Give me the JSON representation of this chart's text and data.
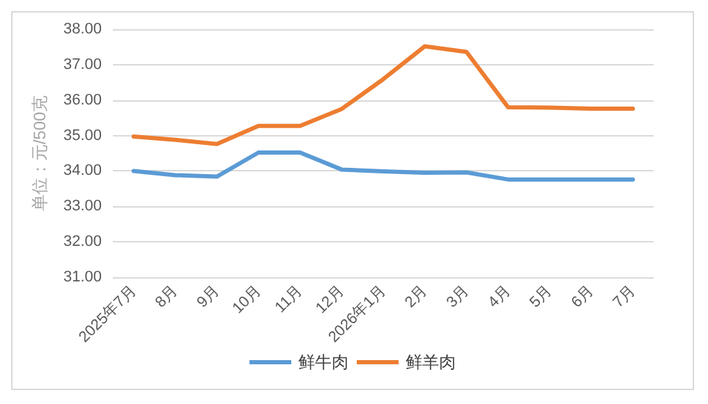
{
  "chart_data": {
    "type": "line",
    "ylabel": "单位：元/500克",
    "categories": [
      "2025年7月",
      "8月",
      "9月",
      "10月",
      "11月",
      "12月",
      "2026年1月",
      "2月",
      "3月",
      "4月",
      "5月",
      "6月",
      "7月"
    ],
    "series": [
      {
        "name": "鲜牛肉",
        "color": "#5b9bd5",
        "values": [
          34.0,
          33.88,
          33.84,
          34.52,
          34.52,
          34.04,
          33.99,
          33.95,
          33.96,
          33.76,
          33.76,
          33.76,
          33.76
        ]
      },
      {
        "name": "鲜羊肉",
        "color": "#ed7d31",
        "values": [
          34.97,
          34.88,
          34.76,
          35.27,
          35.27,
          35.75,
          36.59,
          37.52,
          37.36,
          35.8,
          35.79,
          35.76,
          35.76
        ]
      }
    ],
    "ylim": [
      31,
      38
    ],
    "yticks": [
      {
        "value": 31,
        "label": "31.00"
      },
      {
        "value": 32,
        "label": "32.00"
      },
      {
        "value": 33,
        "label": "33.00"
      },
      {
        "value": 34,
        "label": "34.00"
      },
      {
        "value": 35,
        "label": "35.00"
      },
      {
        "value": 36,
        "label": "36.00"
      },
      {
        "value": 37,
        "label": "37.00"
      },
      {
        "value": 38,
        "label": "38.00"
      }
    ],
    "grid": "y",
    "legend": "bottom",
    "marker": "none",
    "line_style": "solid"
  }
}
